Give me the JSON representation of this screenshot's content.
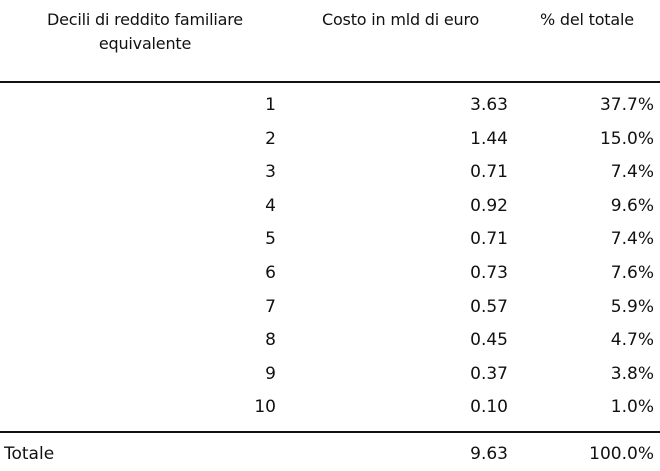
{
  "header": {
    "decile_line1": "Decili di reddito  familiare",
    "decile_line2": "equivalente",
    "cost": "Costo in mld di euro",
    "pct": "% del totale"
  },
  "rows": [
    {
      "decile": "1",
      "cost": "3.63",
      "pct": "37.7%"
    },
    {
      "decile": "2",
      "cost": "1.44",
      "pct": "15.0%"
    },
    {
      "decile": "3",
      "cost": "0.71",
      "pct": "7.4%"
    },
    {
      "decile": "4",
      "cost": "0.92",
      "pct": "9.6%"
    },
    {
      "decile": "5",
      "cost": "0.71",
      "pct": "7.4%"
    },
    {
      "decile": "6",
      "cost": "0.73",
      "pct": "7.6%"
    },
    {
      "decile": "7",
      "cost": "0.57",
      "pct": "5.9%"
    },
    {
      "decile": "8",
      "cost": "0.45",
      "pct": "4.7%"
    },
    {
      "decile": "9",
      "cost": "0.37",
      "pct": "3.8%"
    },
    {
      "decile": "10",
      "cost": "0.10",
      "pct": "1.0%"
    }
  ],
  "total": {
    "label": "Totale",
    "cost": "9.63",
    "pct": "100.0%"
  }
}
